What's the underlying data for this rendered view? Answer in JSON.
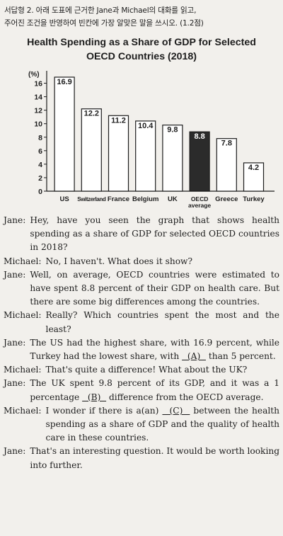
{
  "instruction": {
    "line1": "서답형 2. 아래 도표에 근거한 Jane과 Michael의 대화를 읽고,",
    "line2": "주어진 조건을 반영하여 빈칸에 가장 알맞은 말을 쓰시오. (1.2점)"
  },
  "chart_data": {
    "type": "bar",
    "title_line1": "Health Spending as a Share of GDP for Selected",
    "title_line2": "OECD Countries (2018)",
    "ylabel": "(%)",
    "ylim": [
      0,
      17
    ],
    "yticks": [
      0,
      2,
      4,
      6,
      8,
      10,
      12,
      14,
      16
    ],
    "categories": [
      "US",
      "Switzerland",
      "France",
      "Belgium",
      "UK",
      "OECD average",
      "Greece",
      "Turkey"
    ],
    "category_lines": [
      [
        "US"
      ],
      [
        "Switzerland"
      ],
      [
        "France"
      ],
      [
        "Belgium"
      ],
      [
        "UK"
      ],
      [
        "OECD",
        "average"
      ],
      [
        "Greece"
      ],
      [
        "Turkey"
      ]
    ],
    "values": [
      16.9,
      12.2,
      11.2,
      10.4,
      9.8,
      8.8,
      7.8,
      4.2
    ],
    "value_labels": [
      "16.9",
      "12.2",
      "11.2",
      "10.4",
      "9.8",
      "8.8",
      "7.8",
      "4.2"
    ],
    "highlight_index": 5,
    "colors": {
      "bar": "#ffffff",
      "highlight": "#2b2b2b",
      "stroke": "#1d1d1d",
      "highlight_text": "#ffffff"
    }
  },
  "dialogue": [
    {
      "speaker": "Jane:",
      "text": "Hey, have you seen the graph that shows health spending as a share of GDP for selected OECD countries in 2018?"
    },
    {
      "speaker": "Michael:",
      "text": "No, I haven't. What does it show?"
    },
    {
      "speaker": "Jane:",
      "text": "Well, on average, OECD countries were estimated to have spent 8.8 percent of their GDP on health care. But there are some big differences among the countries."
    },
    {
      "speaker": "Michael:",
      "text": "Really? Which countries spent the most and the least?"
    },
    {
      "speaker": "Jane:",
      "text": "The US had the highest share, with 16.9 percent, while Turkey had the lowest share, with",
      "blank": "(A)",
      "after": "than 5 percent."
    },
    {
      "speaker": "Michael:",
      "text": "That's quite a difference! What about the UK?"
    },
    {
      "speaker": "Jane:",
      "text": "The UK spent 9.8 percent of its GDP, and it was a 1 percentage",
      "blank": "(B)",
      "after": "difference from the OECD average."
    },
    {
      "speaker": "Michael:",
      "text": "I wonder if there is a(an)",
      "blank": "(C)",
      "after": "between the health spending as a share of GDP and the quality of health care in these countries."
    },
    {
      "speaker": "Jane:",
      "text": "That's an interesting question. It would be worth looking into further."
    }
  ]
}
